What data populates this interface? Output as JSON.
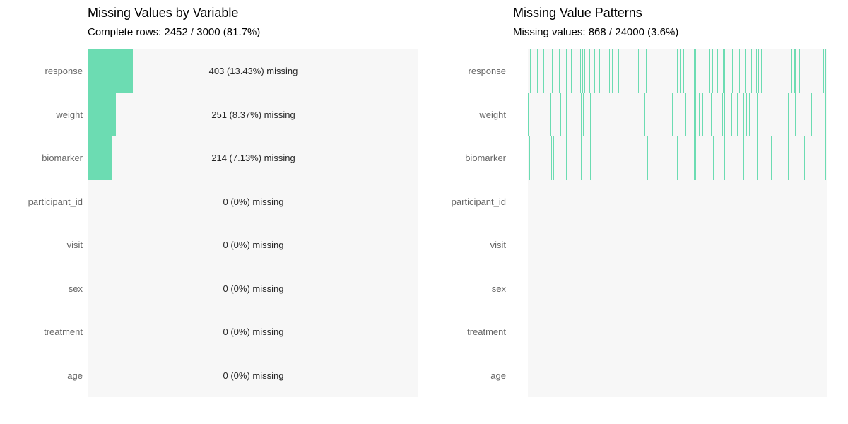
{
  "colors": {
    "accent_teal": "#6cdcb2",
    "plot_background": "#f7f7f7",
    "axis_label": "#666666",
    "annotation_text": "#262626",
    "title_text": "#000000"
  },
  "chart_data": [
    {
      "type": "bar",
      "orientation": "horizontal",
      "title": "Missing Values by Variable",
      "subtitle": "Complete rows: 2452 / 3000 (81.7%)",
      "categories": [
        "response",
        "weight",
        "biomarker",
        "participant_id",
        "visit",
        "sex",
        "treatment",
        "age"
      ],
      "values_pct_missing": [
        13.43,
        8.37,
        7.13,
        0,
        0,
        0,
        0,
        0
      ],
      "values_count_missing": [
        403,
        251,
        214,
        0,
        0,
        0,
        0,
        0
      ],
      "bar_labels": [
        "403 (13.43%) missing",
        "251 (8.37%) missing",
        "214 (7.13%) missing",
        "0 (0%) missing",
        "0 (0%) missing",
        "0 (0%) missing",
        "0 (0%) missing",
        "0 (0%) missing"
      ],
      "xlim": [
        0,
        100
      ],
      "grid": false,
      "legend": false
    },
    {
      "type": "heatmap",
      "subtype": "missingness-pattern",
      "title": "Missing Value Patterns",
      "subtitle": "Missing values: 868 / 24000 (3.6%)",
      "categories": [
        "response",
        "weight",
        "biomarker",
        "participant_id",
        "visit",
        "sex",
        "treatment",
        "age"
      ],
      "total_rows": 3000,
      "total_cells": 24000,
      "total_missing": 868,
      "missing_counts": [
        403,
        251,
        214,
        0,
        0,
        0,
        0,
        0
      ],
      "grid": false,
      "legend": false,
      "tick_positions_pct": {
        "response": [
          [
            0.3,
            1
          ],
          [
            0.9,
            1
          ],
          [
            3.2,
            1
          ],
          [
            5.4,
            1
          ],
          [
            8.1,
            1
          ],
          [
            10.6,
            1
          ],
          [
            12.9,
            1
          ],
          [
            14.5,
            1
          ],
          [
            17.7,
            1
          ],
          [
            18.4,
            1
          ],
          [
            19.1,
            1
          ],
          [
            19.8,
            1
          ],
          [
            20.6,
            1
          ],
          [
            22.3,
            1
          ],
          [
            24.0,
            1
          ],
          [
            26.1,
            1
          ],
          [
            27.4,
            1
          ],
          [
            28.2,
            1
          ],
          [
            30.4,
            1
          ],
          [
            32.6,
            1
          ],
          [
            37.1,
            1
          ],
          [
            39.6,
            2
          ],
          [
            50.0,
            1
          ],
          [
            50.9,
            1
          ],
          [
            52.2,
            1
          ],
          [
            53.5,
            1
          ],
          [
            55.9,
            3
          ],
          [
            58.2,
            1
          ],
          [
            60.8,
            1
          ],
          [
            61.9,
            1
          ],
          [
            63.4,
            1
          ],
          [
            65.7,
            3
          ],
          [
            68.5,
            1
          ],
          [
            70.9,
            1
          ],
          [
            72.6,
            1
          ],
          [
            74.8,
            1
          ],
          [
            75.4,
            1
          ],
          [
            76.4,
            1
          ],
          [
            77.3,
            1
          ],
          [
            78.2,
            1
          ],
          [
            80.1,
            1
          ],
          [
            87.4,
            1
          ],
          [
            88.3,
            1
          ],
          [
            89.4,
            2
          ],
          [
            90.8,
            1
          ],
          [
            99.0,
            1
          ],
          [
            99.7,
            1
          ]
        ],
        "weight": [
          [
            0.1,
            1
          ],
          [
            7.8,
            1
          ],
          [
            8.4,
            1
          ],
          [
            11.0,
            1
          ],
          [
            12.9,
            1
          ],
          [
            17.9,
            1
          ],
          [
            18.5,
            1
          ],
          [
            21.0,
            1
          ],
          [
            32.6,
            1
          ],
          [
            38.9,
            2
          ],
          [
            48.4,
            1
          ],
          [
            52.9,
            1
          ],
          [
            55.9,
            3
          ],
          [
            57.4,
            1
          ],
          [
            58.6,
            1
          ],
          [
            61.4,
            1
          ],
          [
            62.2,
            1
          ],
          [
            65.2,
            1
          ],
          [
            65.8,
            1
          ],
          [
            68.3,
            1
          ],
          [
            70.2,
            1
          ],
          [
            72.3,
            1
          ],
          [
            73.2,
            1
          ],
          [
            74.0,
            1
          ],
          [
            75.2,
            1
          ],
          [
            76.8,
            1
          ],
          [
            87.2,
            1
          ],
          [
            89.4,
            1
          ],
          [
            94.9,
            1
          ],
          [
            99.7,
            1
          ]
        ],
        "biomarker": [
          [
            0.5,
            1
          ],
          [
            8.0,
            1
          ],
          [
            8.6,
            1
          ],
          [
            12.9,
            1
          ],
          [
            17.9,
            1
          ],
          [
            18.7,
            1
          ],
          [
            21.0,
            1
          ],
          [
            40.0,
            1
          ],
          [
            50.0,
            1
          ],
          [
            52.6,
            1
          ],
          [
            55.9,
            3
          ],
          [
            62.0,
            1
          ],
          [
            65.7,
            2
          ],
          [
            72.3,
            1
          ],
          [
            74.4,
            1
          ],
          [
            75.2,
            1
          ],
          [
            76.8,
            1
          ],
          [
            81.5,
            1
          ],
          [
            87.2,
            1
          ],
          [
            92.5,
            1
          ],
          [
            99.7,
            1
          ]
        ],
        "participant_id": [],
        "visit": [],
        "sex": [],
        "treatment": [],
        "age": []
      }
    }
  ]
}
